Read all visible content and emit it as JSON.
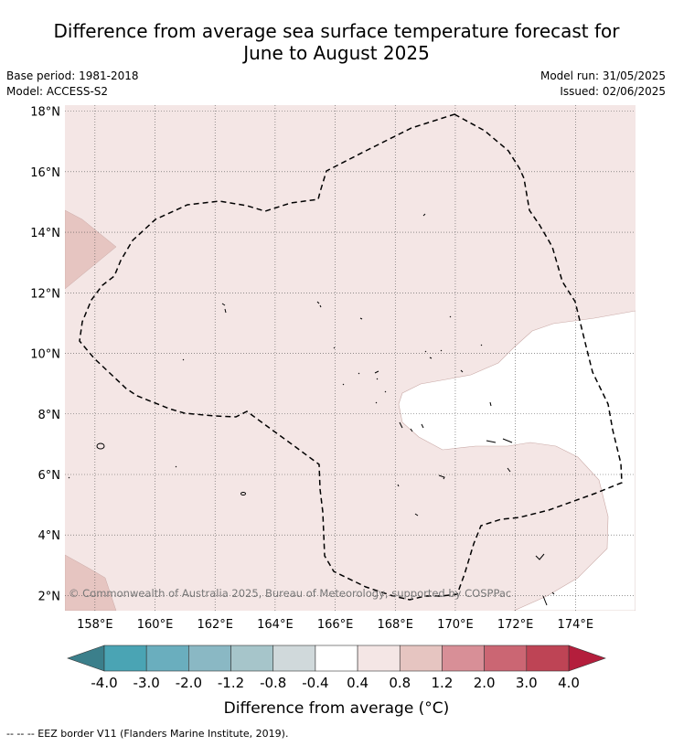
{
  "title_line1": "Difference from average sea surface temperature forecast for",
  "title_line2": "June to August 2025",
  "base_period": "Base period: 1981-2018",
  "model": "Model: ACCESS-S2",
  "model_run": "Model run: 31/05/2025",
  "issued": "Issued: 02/06/2025",
  "copyright": "© Commonwealth of Australia 2025, Bureau of Meteorology, supported by COSPPac",
  "footnote": "--  --  -- EEZ border V11 (Flanders Marine Institute, 2019).",
  "map": {
    "lon_range": [
      157,
      176
    ],
    "lat_range": [
      1.5,
      18.2
    ],
    "lon_ticks": [
      158,
      160,
      162,
      164,
      166,
      168,
      170,
      172,
      174
    ],
    "lon_tick_labels": [
      "158°E",
      "160°E",
      "162°E",
      "164°E",
      "166°E",
      "168°E",
      "170°E",
      "172°E",
      "174°E"
    ],
    "lat_ticks": [
      2,
      4,
      6,
      8,
      10,
      12,
      14,
      16,
      18
    ],
    "lat_tick_labels": [
      "2°N",
      "4°N",
      "6°N",
      "8°N",
      "10°N",
      "12°N",
      "14°N",
      "16°N",
      "18°N"
    ]
  },
  "colorbar": {
    "label": "Difference from average (°C)",
    "tick_labels": [
      "-4.0",
      "-3.0",
      "-2.0",
      "-1.2",
      "-0.8",
      "-0.4",
      "0.4",
      "0.8",
      "1.2",
      "2.0",
      "3.0",
      "4.0"
    ],
    "colors": [
      "#4aa4b4",
      "#6aaebe",
      "#8ab8c4",
      "#a6c5ca",
      "#d0d9db",
      "#ffffff",
      "#f4e6e5",
      "#e6c5c1",
      "#d88f97",
      "#cb6673",
      "#be4455"
    ],
    "under_color": "#3b7f8b",
    "over_color": "#b41e3c"
  },
  "colors": {
    "anomaly_0_4_to_0_8": "#f4e6e5",
    "anomaly_0_8_to_1_2": "#e6c5c1",
    "neutral": "#ffffff"
  }
}
